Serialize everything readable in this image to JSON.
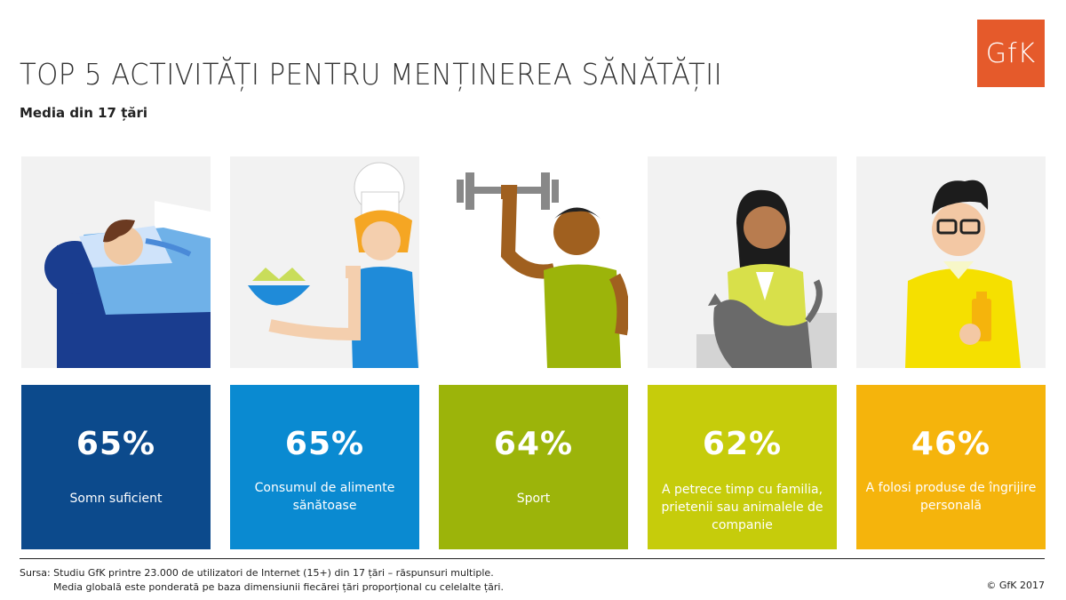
{
  "title": "TOP 5 ACTIVITĂȚI PENTRU MENȚINEREA SĂNĂTĂȚII",
  "subtitle": "Media din 17 țări",
  "logo": "GfK",
  "chart_data": {
    "type": "bar",
    "title": "TOP 5 ACTIVITĂȚI PENTRU MENȚINEREA SĂNĂTĂȚII",
    "subtitle": "Media din 17 țări",
    "categories": [
      "Somn suficient",
      "Consumul de alimente sănătoase",
      "Sport",
      "A petrece timp cu familia, prietenii sau animalele de companie",
      "A folosi produse de îngrijire personală"
    ],
    "values": [
      65,
      65,
      64,
      62,
      46
    ],
    "unit": "%"
  },
  "cards": [
    {
      "pct": "65%",
      "label": "Somn suficient",
      "color": "#0c4a8c",
      "icon": "sleeping-person-icon"
    },
    {
      "pct": "65%",
      "label": "Consumul de alimente sănătoase",
      "color": "#0a8ad1",
      "icon": "chef-salad-icon"
    },
    {
      "pct": "64%",
      "label": "Sport",
      "color": "#9cb40a",
      "icon": "dumbbell-man-icon"
    },
    {
      "pct": "62%",
      "label": "A petrece timp cu familia, prietenii sau animalele de companie",
      "color": "#c6cc0b",
      "icon": "woman-cat-icon"
    },
    {
      "pct": "46%",
      "label": "A folosi produse de îngrijire personală",
      "color": "#f5b40c",
      "icon": "man-lotion-icon"
    }
  ],
  "footer": {
    "source_line1": "Sursa: Studiu GfK printre 23.000 de utilizatori de Internet (15+) din 17 țări – răspunsuri multiple.",
    "source_line2": "Media globală este ponderată pe baza dimensiunii fiecărei țări proporțional cu celelalte țări.",
    "copyright": "© GfK 2017"
  }
}
